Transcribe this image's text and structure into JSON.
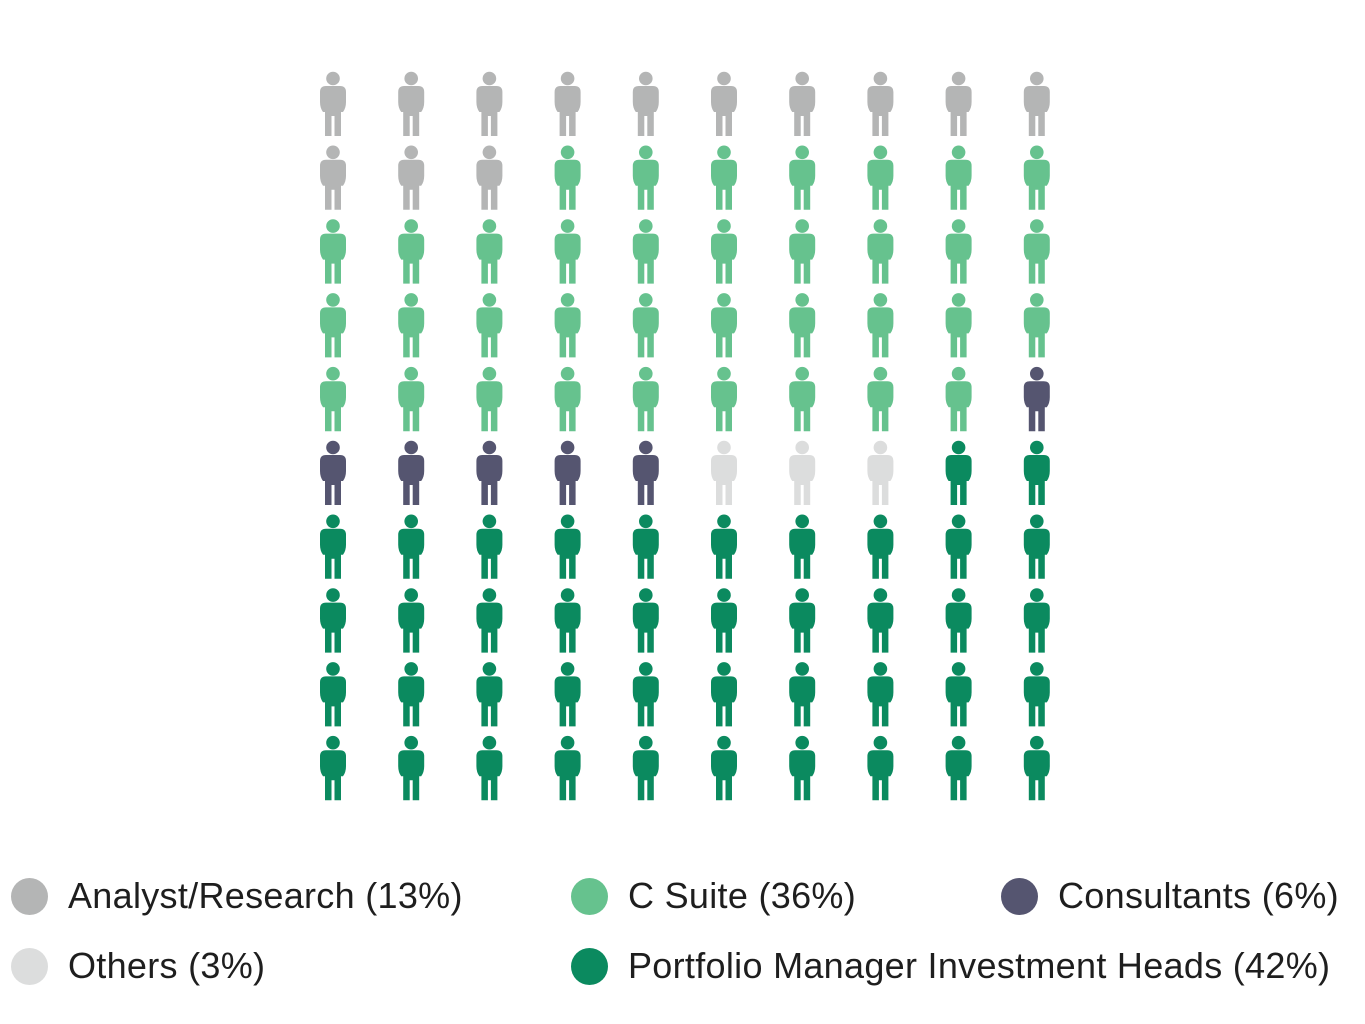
{
  "chart_data": {
    "type": "pictograph",
    "icon": "person-icon",
    "grid": {
      "columns": 10,
      "rows": 10
    },
    "fill_order": "row-major from top-left",
    "series": [
      {
        "name": "Analyst/Research",
        "value": 13,
        "color": "#b4b5b5",
        "label": "Analyst/Research (13%)"
      },
      {
        "name": "C Suite",
        "value": 36,
        "color": "#66c28e",
        "label": "C Suite (36%)"
      },
      {
        "name": "Consultants",
        "value": 6,
        "color": "#555570",
        "label": "Consultants (6%)"
      },
      {
        "name": "Others",
        "value": 3,
        "color": "#dcdddd",
        "label": "Others (3%)"
      },
      {
        "name": "Portfolio Manager Investment Heads",
        "value": 42,
        "color": "#0b8a5f",
        "label": "Portfolio Manager Investment Heads (42%)"
      }
    ]
  }
}
